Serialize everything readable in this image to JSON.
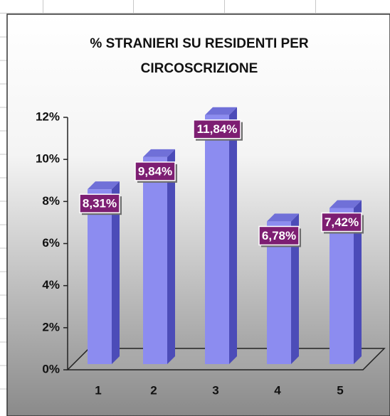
{
  "chart_data": {
    "type": "bar3d",
    "title": "% STRANIERI SU RESIDENTI PER CIRCOSCRIZIONE",
    "categories": [
      "1",
      "2",
      "3",
      "4",
      "5"
    ],
    "values": [
      8.31,
      9.84,
      11.84,
      6.78,
      7.42
    ],
    "value_labels": [
      "8,31%",
      "9,84%",
      "11,84%",
      "6,78%",
      "7,42%"
    ],
    "color": "#8c8cf0",
    "ylim": [
      0,
      12
    ],
    "yticks": [
      {
        "value": 0,
        "label": "0%"
      },
      {
        "value": 2,
        "label": "2%"
      },
      {
        "value": 4,
        "label": "4%"
      },
      {
        "value": 6,
        "label": "6%"
      },
      {
        "value": 8,
        "label": "8%"
      },
      {
        "value": 10,
        "label": "10%"
      },
      {
        "value": 12,
        "label": "12%"
      }
    ]
  }
}
